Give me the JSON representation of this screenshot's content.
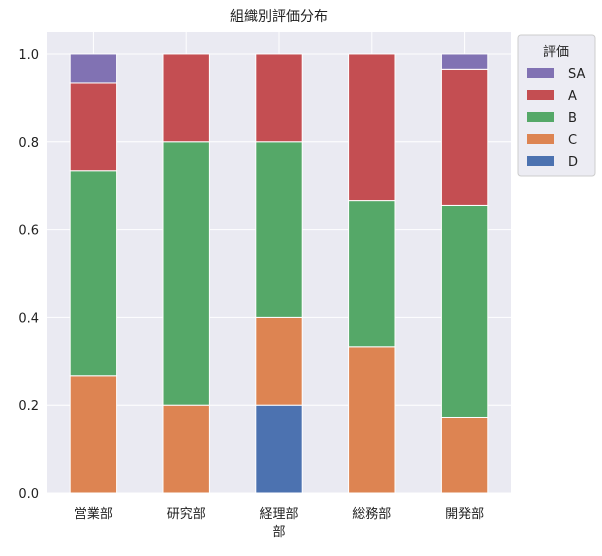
{
  "chart_data": {
    "type": "bar",
    "stacked": true,
    "title": "組織別評価分布",
    "xlabel": "",
    "ylabel": "",
    "categories": [
      "営業部",
      "研究部",
      "経理部\n部",
      "総務部",
      "開発部"
    ],
    "ylim": [
      0,
      1.05
    ],
    "yticks": [
      "0.0",
      "0.2",
      "0.4",
      "0.6",
      "0.8",
      "1.0"
    ],
    "ytick_values": [
      0,
      0.2,
      0.4,
      0.6,
      0.8,
      1.0
    ],
    "grid": true,
    "legend": {
      "title": "評価",
      "placement": "outside-right-top"
    },
    "series": [
      {
        "name": "D",
        "color": "#4c72b0",
        "values": [
          0,
          0,
          0.2,
          0,
          0
        ]
      },
      {
        "name": "C",
        "color": "#dd8452",
        "values": [
          0.267,
          0.2,
          0.2,
          0.333,
          0.172
        ]
      },
      {
        "name": "B",
        "color": "#55a868",
        "values": [
          0.467,
          0.6,
          0.4,
          0.333,
          0.483
        ]
      },
      {
        "name": "A",
        "color": "#c44e52",
        "values": [
          0.2,
          0.2,
          0.2,
          0.334,
          0.31
        ]
      },
      {
        "name": "SA",
        "color": "#8172b3",
        "values": [
          0.066,
          0,
          0,
          0,
          0.035
        ]
      }
    ],
    "legend_order": [
      "SA",
      "A",
      "B",
      "C",
      "D"
    ],
    "background": "#eaeaf2"
  }
}
